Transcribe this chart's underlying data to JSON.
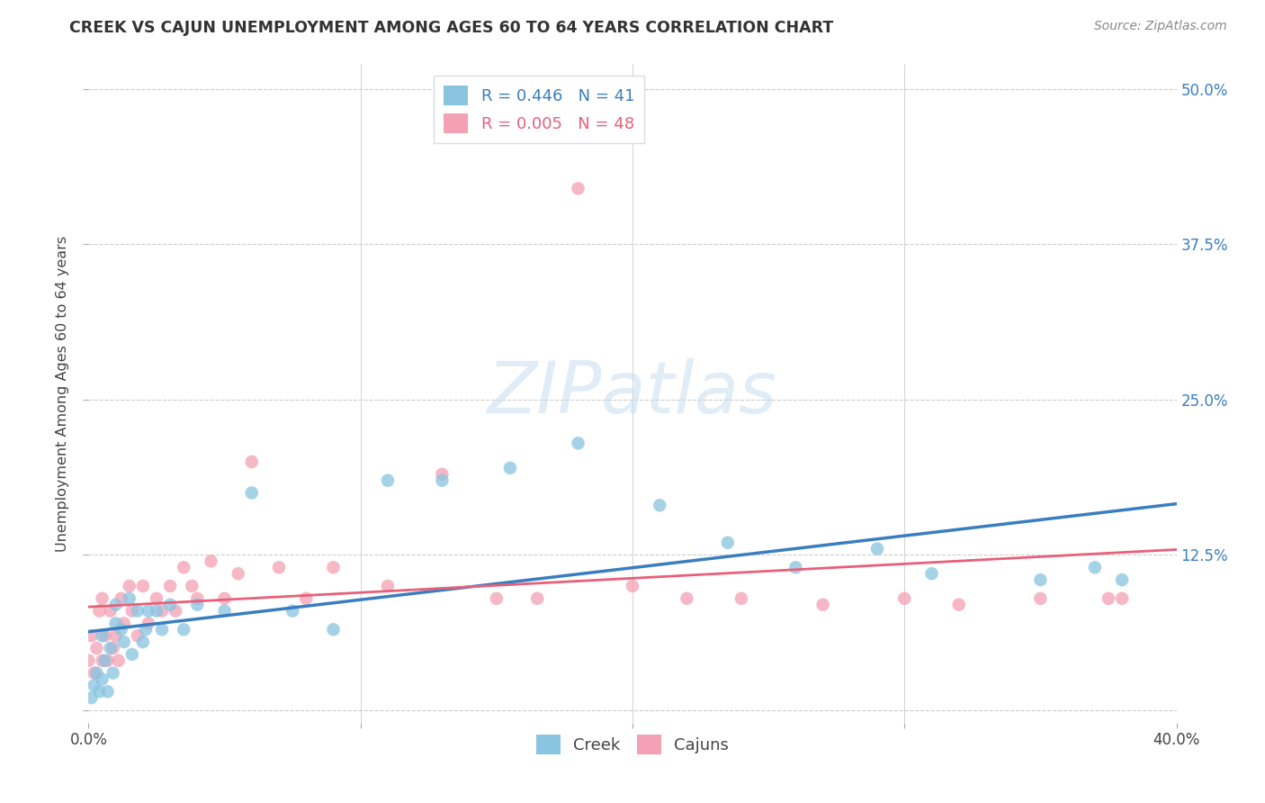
{
  "title": "CREEK VS CAJUN UNEMPLOYMENT AMONG AGES 60 TO 64 YEARS CORRELATION CHART",
  "source": "Source: ZipAtlas.com",
  "ylabel": "Unemployment Among Ages 60 to 64 years",
  "xlim": [
    0.0,
    0.4
  ],
  "ylim": [
    -0.01,
    0.52
  ],
  "xticks": [
    0.0,
    0.1,
    0.2,
    0.3,
    0.4
  ],
  "xtick_labels_show": [
    "0.0%",
    "",
    "",
    "",
    "40.0%"
  ],
  "yticks": [
    0.0,
    0.125,
    0.25,
    0.375,
    0.5
  ],
  "ytick_labels": [
    "",
    "12.5%",
    "25.0%",
    "37.5%",
    "50.0%"
  ],
  "background_color": "#ffffff",
  "grid_color": "#cccccc",
  "creek_color": "#89c4e1",
  "cajun_color": "#f4a0b5",
  "creek_line_color": "#3a7ebf",
  "cajun_line_color": "#e8607a",
  "creek_R": 0.446,
  "creek_N": 41,
  "cajun_R": 0.005,
  "cajun_N": 48,
  "legend_label_creek": "Creek",
  "legend_label_cajun": "Cajuns",
  "creek_scatter_x": [
    0.001,
    0.002,
    0.003,
    0.004,
    0.005,
    0.005,
    0.006,
    0.007,
    0.008,
    0.009,
    0.01,
    0.01,
    0.012,
    0.013,
    0.015,
    0.016,
    0.018,
    0.02,
    0.021,
    0.022,
    0.025,
    0.027,
    0.03,
    0.035,
    0.04,
    0.05,
    0.06,
    0.075,
    0.09,
    0.11,
    0.13,
    0.155,
    0.18,
    0.21,
    0.235,
    0.26,
    0.29,
    0.31,
    0.35,
    0.37,
    0.38
  ],
  "creek_scatter_y": [
    0.01,
    0.02,
    0.03,
    0.015,
    0.025,
    0.06,
    0.04,
    0.015,
    0.05,
    0.03,
    0.07,
    0.085,
    0.065,
    0.055,
    0.09,
    0.045,
    0.08,
    0.055,
    0.065,
    0.08,
    0.08,
    0.065,
    0.085,
    0.065,
    0.085,
    0.08,
    0.175,
    0.08,
    0.065,
    0.185,
    0.185,
    0.195,
    0.215,
    0.165,
    0.135,
    0.115,
    0.13,
    0.11,
    0.105,
    0.115,
    0.105
  ],
  "cajun_scatter_x": [
    0.0,
    0.001,
    0.002,
    0.003,
    0.004,
    0.005,
    0.005,
    0.006,
    0.007,
    0.008,
    0.009,
    0.01,
    0.011,
    0.012,
    0.013,
    0.015,
    0.016,
    0.018,
    0.02,
    0.022,
    0.025,
    0.027,
    0.03,
    0.032,
    0.035,
    0.038,
    0.04,
    0.045,
    0.05,
    0.055,
    0.06,
    0.07,
    0.08,
    0.09,
    0.11,
    0.13,
    0.15,
    0.165,
    0.18,
    0.2,
    0.22,
    0.24,
    0.27,
    0.3,
    0.32,
    0.35,
    0.375,
    0.38
  ],
  "cajun_scatter_y": [
    0.04,
    0.06,
    0.03,
    0.05,
    0.08,
    0.04,
    0.09,
    0.06,
    0.04,
    0.08,
    0.05,
    0.06,
    0.04,
    0.09,
    0.07,
    0.1,
    0.08,
    0.06,
    0.1,
    0.07,
    0.09,
    0.08,
    0.1,
    0.08,
    0.115,
    0.1,
    0.09,
    0.12,
    0.09,
    0.11,
    0.2,
    0.115,
    0.09,
    0.115,
    0.1,
    0.19,
    0.09,
    0.09,
    0.42,
    0.1,
    0.09,
    0.09,
    0.085,
    0.09,
    0.085,
    0.09,
    0.09,
    0.09
  ],
  "watermark_text": "ZIPatlas",
  "watermark_color": "#c8ddf0",
  "watermark_alpha": 0.55
}
